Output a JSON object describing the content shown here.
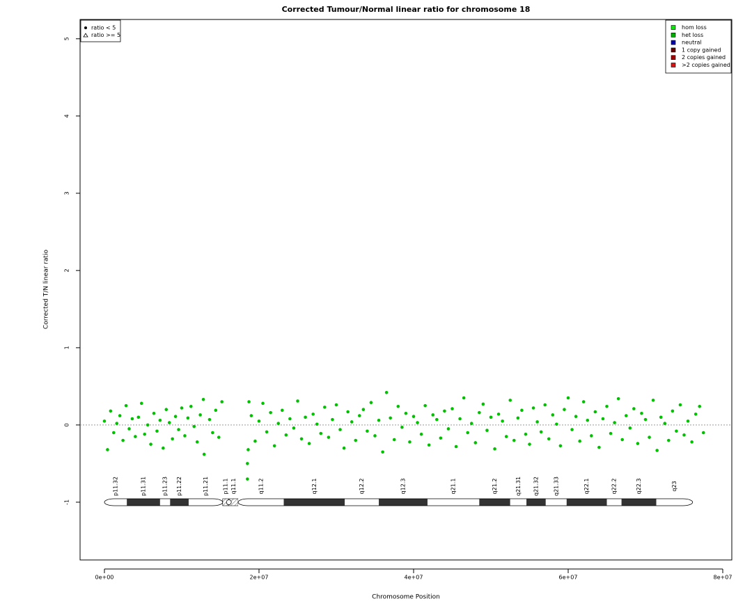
{
  "chart_data": {
    "type": "scatter",
    "title": "Corrected Tumour/Normal linear ratio for chromosome  18",
    "xlabel": "Chromosome Position",
    "ylabel": "Corrected T/N linear ratio",
    "xlim": [
      -3150000,
      81170000
    ],
    "ylim": [
      -1.748,
      5.25
    ],
    "xticks": [
      {
        "value": 0,
        "label": "0e+00"
      },
      {
        "value": 20000000,
        "label": "2e+07"
      },
      {
        "value": 40000000,
        "label": "4e+07"
      },
      {
        "value": 60000000,
        "label": "6e+07"
      },
      {
        "value": 80000000,
        "label": "8e+07"
      }
    ],
    "yticks": [
      -1,
      0,
      1,
      2,
      3,
      4,
      5
    ],
    "reference_line": 0,
    "series": [
      {
        "name": "ratio < 5",
        "color": "#00c000",
        "x": [
          0,
          400000,
          800000,
          1200000,
          1600000,
          2000000,
          2400000,
          2800000,
          3200000,
          3600000,
          4000000,
          4400000,
          4800000,
          5200000,
          5600000,
          6000000,
          6400000,
          6800000,
          7200000,
          7600000,
          8000000,
          8400000,
          8800000,
          9200000,
          9600000,
          10000000,
          10400000,
          10800000,
          11200000,
          11600000,
          12000000,
          12400000,
          12800000,
          12900000,
          13600000,
          14000000,
          14400000,
          14800000,
          15200000,
          18500000,
          18500000,
          18600000,
          18700000,
          19000000,
          19500000,
          20000000,
          20500000,
          21000000,
          21500000,
          22000000,
          22500000,
          23000000,
          23500000,
          24000000,
          24500000,
          25000000,
          25500000,
          26000000,
          26500000,
          27000000,
          27500000,
          28000000,
          28500000,
          29000000,
          29500000,
          30000000,
          30500000,
          31000000,
          31500000,
          32000000,
          32500000,
          33000000,
          33500000,
          34000000,
          34500000,
          35000000,
          35500000,
          36000000,
          36500000,
          37000000,
          37500000,
          38000000,
          38500000,
          39000000,
          39500000,
          40000000,
          40500000,
          41000000,
          41500000,
          42000000,
          42500000,
          43000000,
          43500000,
          44000000,
          44500000,
          45000000,
          45500000,
          46000000,
          46500000,
          47000000,
          47500000,
          48000000,
          48500000,
          49000000,
          49500000,
          50000000,
          50500000,
          51000000,
          51500000,
          52000000,
          52500000,
          53000000,
          53500000,
          54000000,
          54500000,
          55000000,
          55500000,
          56000000,
          56500000,
          57000000,
          57500000,
          58000000,
          58500000,
          59000000,
          59500000,
          60000000,
          60500000,
          61000000,
          61500000,
          62000000,
          62500000,
          63000000,
          63500000,
          64000000,
          64500000,
          65000000,
          65500000,
          66000000,
          66500000,
          67000000,
          67500000,
          68000000,
          68500000,
          69000000,
          69500000,
          70000000,
          70500000,
          71000000,
          71500000,
          72000000,
          72500000,
          73000000,
          73500000,
          74000000,
          74500000,
          75000000,
          75500000,
          76000000,
          76500000,
          77000000,
          77500000
        ],
        "values": [
          0.05,
          -0.32,
          0.18,
          -0.1,
          0.02,
          0.12,
          -0.2,
          0.25,
          -0.05,
          0.08,
          -0.15,
          0.1,
          0.28,
          -0.12,
          0.0,
          -0.25,
          0.15,
          -0.08,
          0.06,
          -0.3,
          0.2,
          0.03,
          -0.18,
          0.11,
          -0.06,
          0.22,
          -0.14,
          0.09,
          0.24,
          -0.02,
          -0.22,
          0.13,
          0.33,
          -0.38,
          0.07,
          -0.1,
          0.19,
          -0.16,
          0.3,
          -0.7,
          -0.5,
          -0.32,
          0.3,
          0.12,
          -0.21,
          0.05,
          0.28,
          -0.09,
          0.16,
          -0.27,
          0.02,
          0.19,
          -0.13,
          0.08,
          -0.04,
          0.31,
          -0.18,
          0.1,
          -0.24,
          0.14,
          0.01,
          -0.11,
          0.23,
          -0.16,
          0.07,
          0.26,
          -0.06,
          -0.3,
          0.17,
          0.04,
          -0.2,
          0.12,
          0.2,
          -0.08,
          0.29,
          -0.14,
          0.06,
          -0.35,
          0.42,
          0.09,
          -0.19,
          0.24,
          -0.03,
          0.15,
          -0.22,
          0.11,
          0.03,
          -0.12,
          0.25,
          -0.26,
          0.13,
          0.07,
          -0.17,
          0.18,
          -0.05,
          0.21,
          -0.28,
          0.08,
          0.35,
          -0.1,
          0.02,
          -0.23,
          0.16,
          0.27,
          -0.07,
          0.1,
          -0.31,
          0.14,
          0.05,
          -0.15,
          0.32,
          -0.2,
          0.09,
          0.19,
          -0.12,
          -0.25,
          0.22,
          0.04,
          -0.09,
          0.26,
          -0.18,
          0.13,
          0.01,
          -0.27,
          0.2,
          0.35,
          -0.06,
          0.11,
          -0.21,
          0.3,
          0.06,
          -0.14,
          0.17,
          -0.29,
          0.08,
          0.24,
          -0.11,
          0.03,
          0.34,
          -0.19,
          0.12,
          -0.04,
          0.21,
          -0.24,
          0.15,
          0.07,
          -0.16,
          0.32,
          -0.33,
          0.1,
          0.02,
          -0.2,
          0.18,
          -0.08,
          0.26,
          -0.13,
          0.05,
          -0.22,
          0.14,
          0.24,
          -0.1
        ]
      }
    ],
    "ratio_legend": [
      {
        "name": "ratio < 5",
        "shape": "circle"
      },
      {
        "name": "ratio >= 5",
        "shape": "triangle"
      }
    ],
    "cn_legend": [
      {
        "name": "hom loss",
        "color": "#00ee00"
      },
      {
        "name": "het loss",
        "color": "#00b000"
      },
      {
        "name": "neutral",
        "color": "#0000b0"
      },
      {
        "name": "1 copy gained",
        "color": "#6a0000"
      },
      {
        "name": "2 copies gained",
        "color": "#a00000"
      },
      {
        "name": ">2 copies gained",
        "color": "#e01010"
      }
    ],
    "bands": [
      {
        "name": "p11.32",
        "start": 0,
        "end": 2900000,
        "stain": "gneg"
      },
      {
        "name": "p11.31",
        "start": 2900000,
        "end": 7200000,
        "stain": "gpos"
      },
      {
        "name": "p11.23",
        "start": 7200000,
        "end": 8500000,
        "stain": "gneg"
      },
      {
        "name": "p11.22",
        "start": 8500000,
        "end": 10900000,
        "stain": "gpos"
      },
      {
        "name": "p11.21",
        "start": 10900000,
        "end": 15300000,
        "stain": "gneg"
      },
      {
        "name": "p11.1",
        "start": 15300000,
        "end": 16100000,
        "stain": "acen"
      },
      {
        "name": "q11.1",
        "start": 16100000,
        "end": 17300000,
        "stain": "acen"
      },
      {
        "name": "q11.2",
        "start": 17300000,
        "end": 23200000,
        "stain": "gneg"
      },
      {
        "name": "q12.1",
        "start": 23200000,
        "end": 31100000,
        "stain": "gpos"
      },
      {
        "name": "q12.2",
        "start": 31100000,
        "end": 35500000,
        "stain": "gneg"
      },
      {
        "name": "q12.3",
        "start": 35500000,
        "end": 41800000,
        "stain": "gpos"
      },
      {
        "name": "q21.1",
        "start": 41800000,
        "end": 48500000,
        "stain": "gneg"
      },
      {
        "name": "q21.2",
        "start": 48500000,
        "end": 52500000,
        "stain": "gpos"
      },
      {
        "name": "q21.31",
        "start": 52500000,
        "end": 54600000,
        "stain": "gneg"
      },
      {
        "name": "q21.32",
        "start": 54600000,
        "end": 57100000,
        "stain": "gpos"
      },
      {
        "name": "q21.33",
        "start": 57100000,
        "end": 59800000,
        "stain": "gneg"
      },
      {
        "name": "q22.1",
        "start": 59800000,
        "end": 65000000,
        "stain": "gpos"
      },
      {
        "name": "q22.2",
        "start": 65000000,
        "end": 66900000,
        "stain": "gneg"
      },
      {
        "name": "q22.3",
        "start": 66900000,
        "end": 71400000,
        "stain": "gpos"
      },
      {
        "name": "q23",
        "start": 71400000,
        "end": 76100000,
        "stain": "gneg"
      }
    ]
  }
}
